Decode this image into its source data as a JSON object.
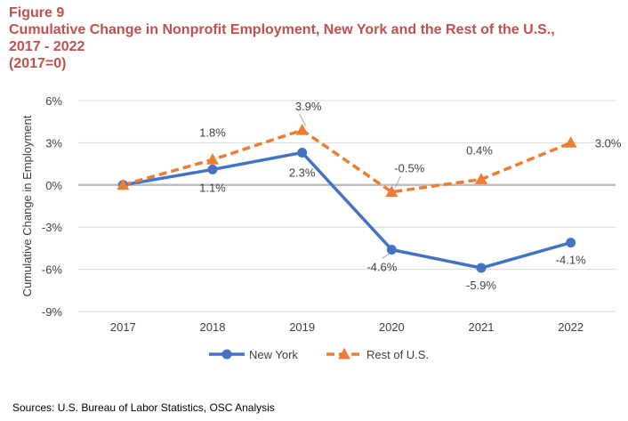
{
  "figure": {
    "label": "Figure 9",
    "title_line1": "Cumulative Change in Nonprofit Employment, New York and the Rest of the U.S.,",
    "title_line2": "2017 - 2022",
    "title_line3": "(2017=0)"
  },
  "source": "Sources:  U.S. Bureau of Labor Statistics, OSC Analysis",
  "chart_data": {
    "type": "line",
    "title": "Cumulative Change in Nonprofit Employment, New York and the Rest of the U.S., 2017 - 2022 (2017=0)",
    "xlabel": "",
    "ylabel": "Cumulative Change in Employment",
    "categories": [
      "2017",
      "2018",
      "2019",
      "2020",
      "2021",
      "2022"
    ],
    "ylim": [
      -9,
      6
    ],
    "yticks": [
      -9,
      -6,
      -3,
      0,
      3,
      6
    ],
    "ytick_labels": [
      "-9%",
      "-6%",
      "-3%",
      "0%",
      "3%",
      "6%"
    ],
    "legend_position": "bottom",
    "series": [
      {
        "name": "New York",
        "color": "#4472c4",
        "marker": "circle",
        "line_style": "solid",
        "values": [
          0,
          1.1,
          2.3,
          -4.6,
          -5.9,
          -4.1
        ],
        "data_labels": [
          "",
          "1.1%",
          "2.3%",
          "-4.6%",
          "-5.9%",
          "-4.1%"
        ]
      },
      {
        "name": "Rest of U.S.",
        "color": "#ed7d31",
        "marker": "triangle",
        "line_style": "dashed",
        "values": [
          0,
          1.8,
          3.9,
          -0.5,
          0.4,
          3.0
        ],
        "data_labels": [
          "",
          "1.8%",
          "3.9%",
          "-0.5%",
          "0.4%",
          "3.0%"
        ]
      }
    ]
  }
}
